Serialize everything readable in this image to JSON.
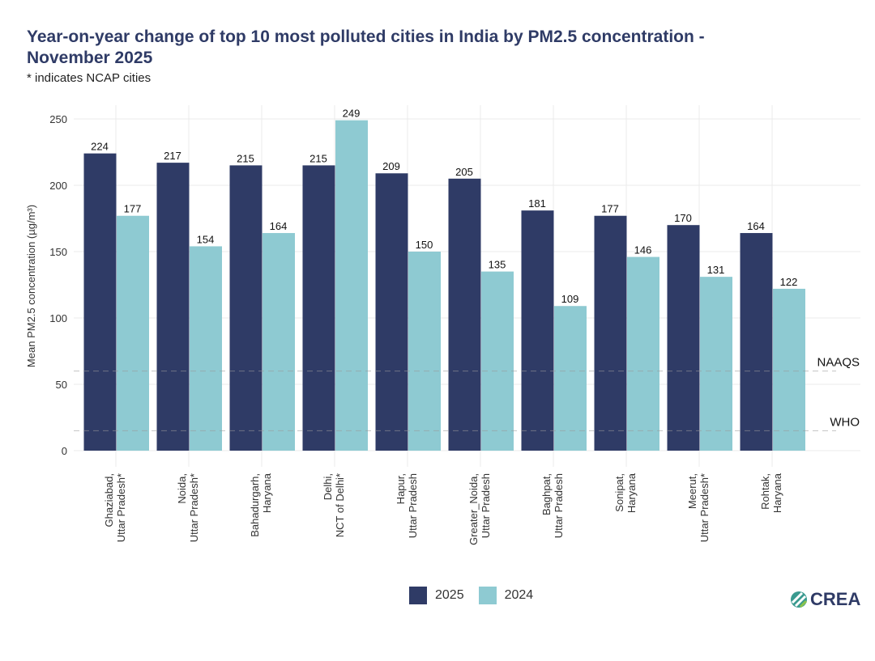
{
  "title": "Year-on-year change of top 10 most polluted cities in India by PM2.5 concentration - November 2025",
  "subtitle": "* indicates NCAP cities",
  "logo": "CREA",
  "chart_data": {
    "type": "bar",
    "ylabel": "Mean PM2.5 concentration (µg/m³)",
    "xlabel": "",
    "ylim": [
      0,
      250
    ],
    "yticks": [
      0,
      50,
      100,
      150,
      200,
      250
    ],
    "grid": true,
    "legend_placement": "bottom",
    "categories": [
      [
        "Ghaziabad,",
        "Uttar Pradesh*"
      ],
      [
        "Noida,",
        "Uttar Pradesh*"
      ],
      [
        "Bahadurgarh,",
        "Haryana"
      ],
      [
        "Delhi,",
        "NCT of Delhi*"
      ],
      [
        "Hapur,",
        "Uttar Pradesh"
      ],
      [
        "Greater_Noida,",
        "Uttar Pradesh"
      ],
      [
        "Baghpat,",
        "Uttar Pradesh"
      ],
      [
        "Sonipat,",
        "Haryana"
      ],
      [
        "Meerut,",
        "Uttar Pradesh*"
      ],
      [
        "Rohtak,",
        "Haryana"
      ]
    ],
    "series": [
      {
        "name": "2025",
        "color": "#2f3b66",
        "values": [
          224,
          217,
          215,
          215,
          209,
          205,
          181,
          177,
          170,
          164
        ]
      },
      {
        "name": "2024",
        "color": "#8ecad2",
        "values": [
          177,
          154,
          164,
          249,
          150,
          135,
          109,
          146,
          131,
          122
        ]
      }
    ],
    "reference_lines": [
      {
        "label": "NAAQS",
        "value": 60
      },
      {
        "label": "WHO",
        "value": 15
      }
    ]
  }
}
